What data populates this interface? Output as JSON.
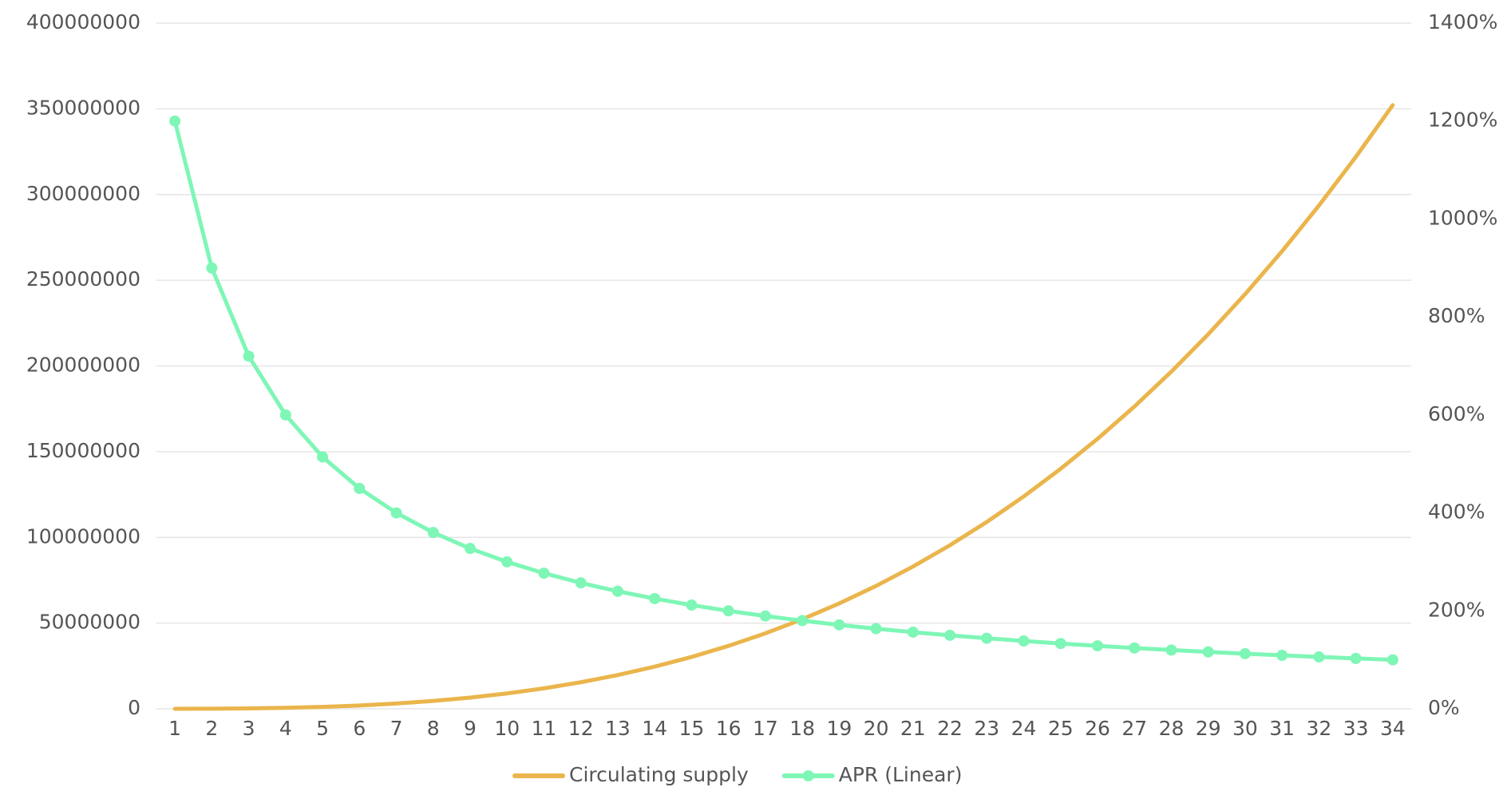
{
  "chart_data": {
    "type": "line",
    "categories": [
      1,
      2,
      3,
      4,
      5,
      6,
      7,
      8,
      9,
      10,
      11,
      12,
      13,
      14,
      15,
      16,
      17,
      18,
      19,
      20,
      21,
      22,
      23,
      24,
      25,
      26,
      27,
      28,
      29,
      30,
      31,
      32,
      33,
      34
    ],
    "series": [
      {
        "name": "Circulating supply",
        "color": "#eab54c",
        "axis": "y",
        "marker": false,
        "values": [
          9000,
          72000,
          242000,
          573000,
          1120000,
          1935000,
          3073000,
          4588000,
          6532000,
          8960000,
          11926000,
          15483000,
          19685000,
          24586000,
          30240000,
          36700000,
          44020000,
          52255000,
          61455000,
          71680000,
          82979000,
          95406000,
          109015000,
          123863000,
          140000000,
          157481000,
          176360000,
          196690000,
          218525000,
          241920000,
          266927000,
          293601000,
          321996000,
          352161000
        ]
      },
      {
        "name": "APR (Linear)",
        "color": "#7ef6b6",
        "axis": "y2",
        "marker": true,
        "values": [
          1200,
          900,
          720,
          600,
          514.3,
          450,
          400,
          360,
          327.3,
          300,
          276.9,
          257.1,
          240,
          225,
          211.8,
          200,
          189.5,
          180,
          171.4,
          163.6,
          156.5,
          150,
          144,
          138.5,
          133.3,
          128.6,
          124.1,
          120,
          116.1,
          112.5,
          109.1,
          105.9,
          102.9,
          100
        ]
      }
    ],
    "ylim": [
      0,
      400000000
    ],
    "yticks": [
      0,
      50000000,
      100000000,
      150000000,
      200000000,
      250000000,
      300000000,
      350000000,
      400000000
    ],
    "y2lim": [
      0,
      1400
    ],
    "y2ticks": [
      {
        "value": 0,
        "label": "0%"
      },
      {
        "value": 200,
        "label": "200%"
      },
      {
        "value": 400,
        "label": "400%"
      },
      {
        "value": 600,
        "label": "600%"
      },
      {
        "value": 800,
        "label": "800%"
      },
      {
        "value": 1000,
        "label": "1000%"
      },
      {
        "value": 1200,
        "label": "1200%"
      },
      {
        "value": 1400,
        "label": "1400%"
      }
    ],
    "grid": true,
    "legend": "bottom"
  }
}
